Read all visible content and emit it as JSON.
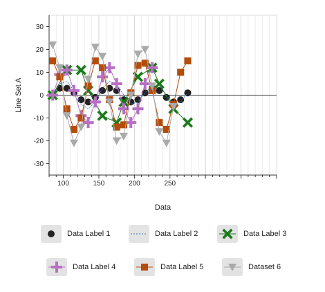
{
  "chart_data": {
    "type": "line",
    "xlabel": "Data",
    "ylabel": "Line Set A",
    "xlim": [
      80,
      400
    ],
    "ylim": [
      -35,
      35
    ],
    "xticks": [
      100,
      150,
      200,
      250
    ],
    "yticks": [
      -30,
      -20,
      -10,
      0,
      10,
      20,
      30
    ],
    "grid": "vertical",
    "legend_position": "bottom",
    "series": [
      {
        "name": "Data Label 1",
        "color": "#222222",
        "marker": "circle",
        "line": "none",
        "x": [
          85,
          95,
          105,
          115,
          125,
          135,
          145,
          155,
          165,
          175,
          185,
          195,
          205,
          215,
          225,
          235,
          245,
          255,
          265,
          275
        ],
        "y": [
          0,
          3,
          3,
          1,
          -2,
          -3,
          -1,
          2,
          3,
          2,
          -2,
          -3,
          -2,
          1,
          3,
          2,
          -1,
          -3,
          -2,
          1
        ]
      },
      {
        "name": "Data Label 2",
        "color": "#2e7ab8",
        "marker": "none",
        "line": "dotted",
        "x": [
          85,
          95,
          105,
          115,
          125,
          135,
          145,
          155,
          165,
          175,
          185,
          195,
          205,
          215,
          225,
          235,
          245,
          255,
          265,
          275
        ],
        "y": [
          0,
          5,
          6,
          2,
          -4,
          -6,
          -3,
          3,
          6,
          5,
          0,
          -4,
          -3,
          1,
          4,
          4,
          0,
          -4,
          -3,
          1
        ]
      },
      {
        "name": "Data Label 3",
        "color": "#1a7a1a",
        "marker": "x",
        "line": "solid",
        "x": [
          85,
          105,
          125,
          135,
          155,
          175,
          185,
          205,
          225,
          235,
          255,
          275
        ],
        "y": [
          0,
          11,
          11,
          2,
          -9,
          -12,
          -3,
          8,
          12,
          5,
          -6,
          -12
        ]
      },
      {
        "name": "Data Label 4",
        "color": "#b86fc4",
        "marker": "plus",
        "line": "solid",
        "x": [
          85,
          95,
          105,
          115,
          125,
          135,
          145,
          155,
          165,
          175,
          185,
          195,
          205,
          215,
          225
        ],
        "y": [
          0,
          9,
          11,
          2,
          -9,
          -12,
          -3,
          8,
          12,
          5,
          -6,
          -12,
          -6,
          5,
          12
        ]
      },
      {
        "name": "Data Label 5",
        "color": "#b54c0a",
        "marker": "square",
        "line": "solid",
        "x": [
          85,
          95,
          105,
          115,
          125,
          135,
          145,
          155,
          165,
          175,
          185,
          195,
          205,
          215,
          225,
          235,
          245,
          255,
          265,
          275
        ],
        "y": [
          15,
          8,
          -6,
          -15,
          -10,
          4,
          15,
          12,
          -2,
          -14,
          -13,
          1,
          13,
          14,
          2,
          -12,
          -15,
          -4,
          10,
          15
        ]
      },
      {
        "name": "Dataset 6",
        "color": "#aaaaaa",
        "marker": "triangle-down",
        "line": "solid",
        "x": [
          85,
          95,
          105,
          115,
          125,
          135,
          145,
          155,
          165,
          175,
          185,
          195,
          205,
          215,
          225,
          235,
          245,
          255
        ],
        "y": [
          22,
          12,
          -9,
          -21,
          -14,
          7,
          21,
          17,
          -3,
          -20,
          -18,
          0,
          18,
          20,
          4,
          -16,
          -21,
          -5
        ]
      }
    ]
  }
}
